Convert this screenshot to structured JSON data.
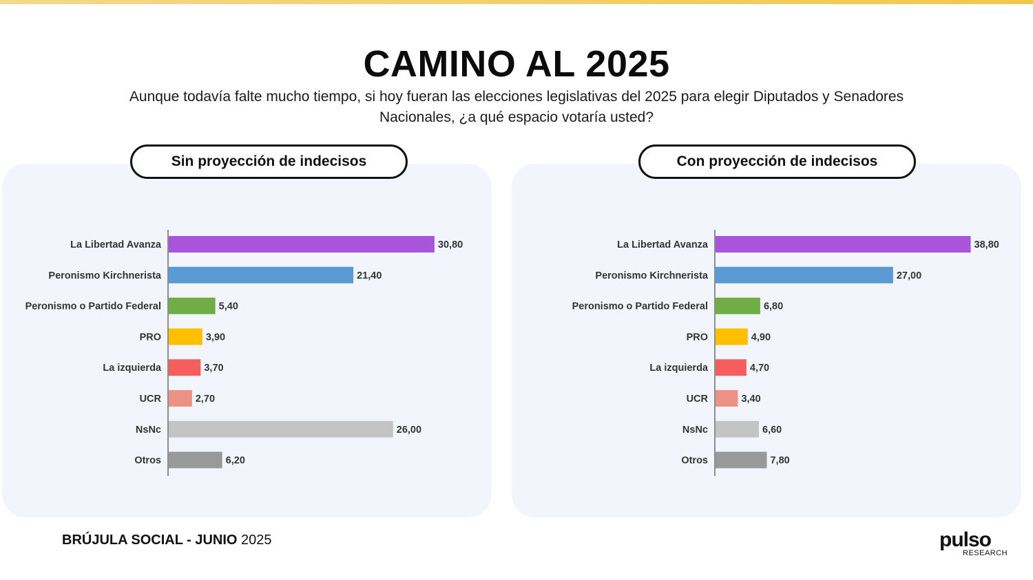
{
  "title": "CAMINO AL 2025",
  "subtitle": "Aunque todavía falte mucho tiempo, si hoy fueran las elecciones legislativas del 2025 para elegir Diputados y Senadores Nacionales, ¿a qué espacio votaría usted?",
  "footer": {
    "bold": "BRÚJULA SOCIAL - JUNIO",
    "year": "2025"
  },
  "logo": {
    "word": "pulso",
    "sub": "RESEARCH"
  },
  "colors": [
    "#a855db",
    "#5b9bd5",
    "#70ad47",
    "#ffc000",
    "#f65d5d",
    "#eb9285",
    "#c4c4c4",
    "#999999"
  ],
  "chart_data": [
    {
      "type": "bar",
      "orientation": "horizontal",
      "title": "Sin proyección de indecisos",
      "categories": [
        "La Libertad Avanza",
        "Peronismo Kirchnerista",
        "Peronismo o Partido Federal",
        "PRO",
        "La izquierda",
        "UCR",
        "NsNc",
        "Otros"
      ],
      "values": [
        30.8,
        21.4,
        5.4,
        3.9,
        3.7,
        2.7,
        26.0,
        6.2
      ],
      "labels": [
        "30,80",
        "21,40",
        "5,40",
        "3,90",
        "3,70",
        "2,70",
        "26,00",
        "6,20"
      ]
    },
    {
      "type": "bar",
      "orientation": "horizontal",
      "title": "Con proyección de indecisos",
      "categories": [
        "La Libertad Avanza",
        "Peronismo Kirchnerista",
        "Peronismo o Partido Federal",
        "PRO",
        "La izquierda",
        "UCR",
        "NsNc",
        "Otros"
      ],
      "values": [
        38.8,
        27.0,
        6.8,
        4.9,
        4.7,
        3.4,
        6.6,
        7.8
      ],
      "labels": [
        "38,80",
        "27,00",
        "6,80",
        "4,90",
        "4,70",
        "3,40",
        "6,60",
        "7,80"
      ]
    }
  ]
}
